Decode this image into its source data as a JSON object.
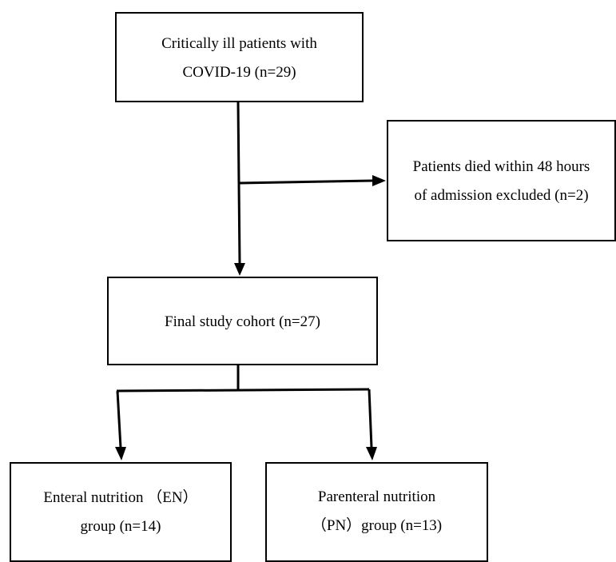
{
  "flowchart": {
    "start_box": {
      "line1": "Critically ill patients with",
      "line2": "COVID-19 (n=29)"
    },
    "excluded_box": {
      "line1": "Patients died within 48 hours",
      "line2": "of admission excluded (n=2)"
    },
    "cohort_box": {
      "line1": "Final study cohort (n=27)"
    },
    "en_box": {
      "line1": "Enteral nutrition （EN）",
      "line2": "group (n=14)"
    },
    "pn_box": {
      "line1": "Parenteral nutrition",
      "line2": "（PN）group (n=13)"
    }
  },
  "colors": {
    "line": "#000000",
    "background": "#ffffff"
  }
}
